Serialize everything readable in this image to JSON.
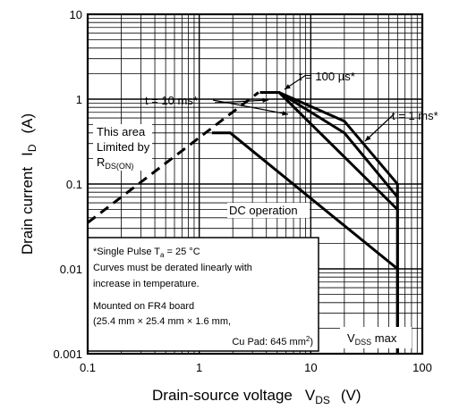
{
  "chart_data": {
    "type": "line",
    "x_scale": "log",
    "y_scale": "log",
    "xlim": [
      0.1,
      100
    ],
    "ylim": [
      0.001,
      10
    ],
    "grid": true,
    "x_ticks": [
      "0.1",
      "1",
      "10",
      "100"
    ],
    "y_ticks": [
      "10",
      "1",
      "0.1",
      "0.01",
      "0.001"
    ],
    "xlabel": {
      "main": "Drain-source voltage",
      "sym": "V",
      "sub": "DS",
      "unit": "(V)"
    },
    "ylabel": {
      "main": "Drain current",
      "sym": "I",
      "sub": "D",
      "unit": "(A)"
    },
    "series": [
      {
        "name": "DC operation",
        "style": "solid",
        "points": [
          [
            1.3,
            0.4
          ],
          [
            1.9,
            0.4
          ],
          [
            60,
            0.01
          ],
          [
            60,
            0.001
          ]
        ]
      },
      {
        "name": "t = 10 ms*",
        "style": "solid",
        "points": [
          [
            3.5,
            1.2
          ],
          [
            5.2,
            1.2
          ],
          [
            60,
            0.05
          ],
          [
            60,
            0.001
          ]
        ]
      },
      {
        "name": "t = 1 ms*",
        "style": "solid",
        "points": [
          [
            3.5,
            1.2
          ],
          [
            5.2,
            1.2
          ],
          [
            20,
            0.4
          ],
          [
            60,
            0.07
          ]
        ]
      },
      {
        "name": "t = 100 µs*",
        "style": "solid",
        "points": [
          [
            5.2,
            1.2
          ],
          [
            20,
            0.55
          ],
          [
            60,
            0.1
          ],
          [
            60,
            0.001
          ]
        ]
      },
      {
        "name": "R_DS(ON) limit",
        "style": "dashed",
        "points": [
          [
            0.1,
            0.035
          ],
          [
            3.4,
            1.2
          ]
        ]
      }
    ],
    "annotations": {
      "t100us": "t = 100 µs*",
      "t10ms": "t = 10 ms*",
      "t1ms": "t = 1 ms*",
      "limit_l1": "This area",
      "limit_l2": "Limited by",
      "limit_r": "R",
      "limit_rsub": "DS(ON)",
      "dc": "DC operation",
      "vdss_sym": "V",
      "vdss_sub": "DSS",
      "vdss_tail": " max"
    },
    "notes": {
      "line1_pre": "*Single Pulse T",
      "line1_sub": "a",
      "line1_post": " = 25 °C",
      "line2": "Curves must be derated linearly with",
      "line3": "increase in temperature.",
      "line4": "Mounted on FR4 board",
      "line5": "(25.4 mm × 25.4 mm × 1.6 mm,",
      "line6_pre": "Cu Pad: 645 mm",
      "line6_sup": "2",
      "line6_post": ")"
    }
  }
}
